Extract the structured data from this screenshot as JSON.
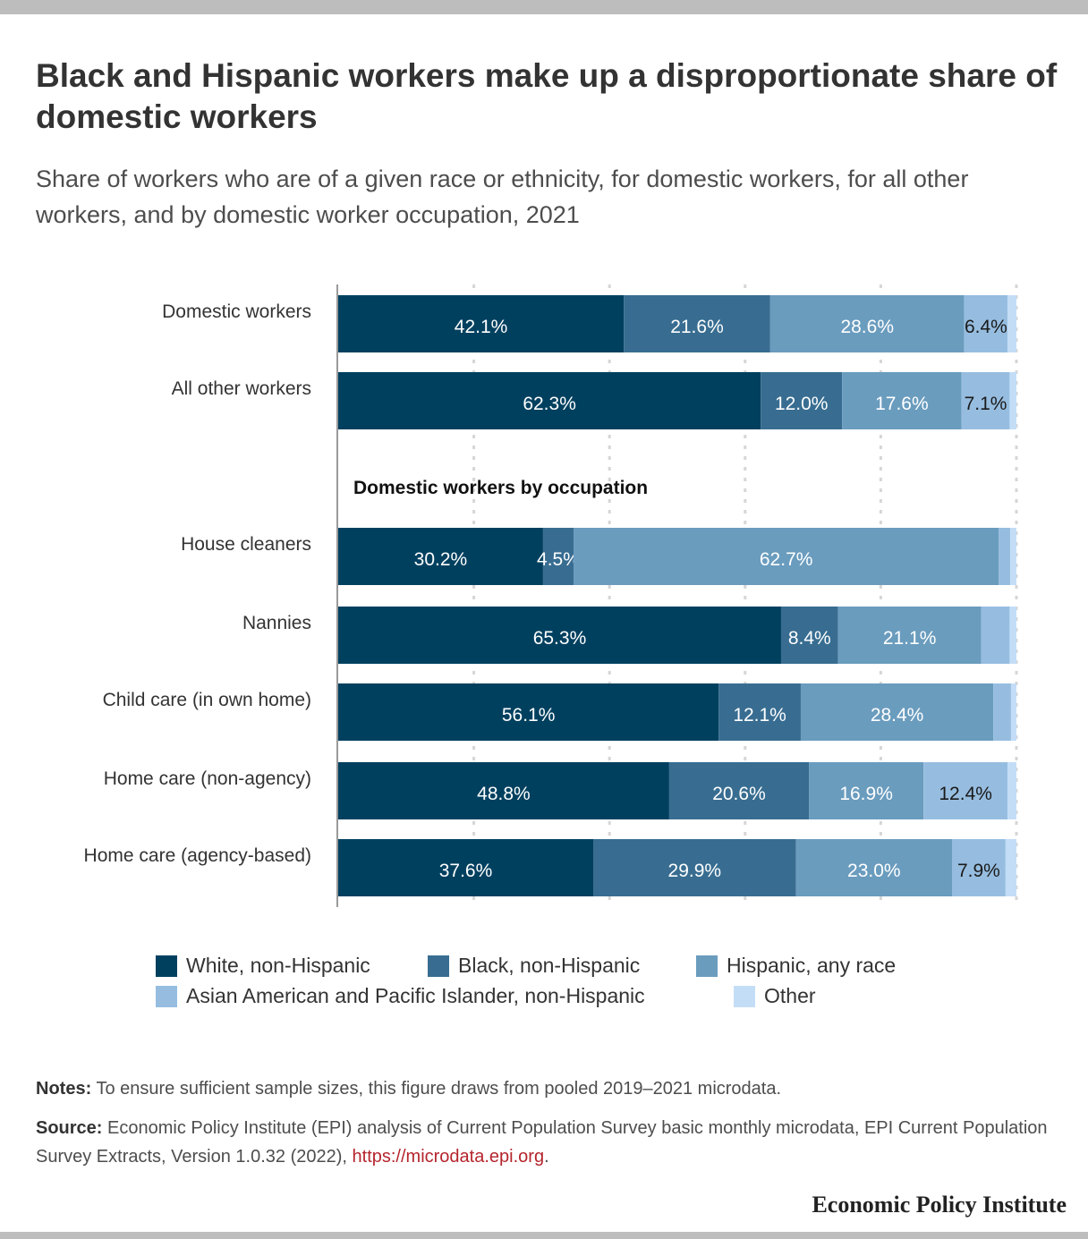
{
  "header": {
    "title": "Black and Hispanic workers make up a disproportionate share of domestic workers",
    "subtitle": "Share of workers who are of a given race or ethnicity, for domestic workers, for all other workers, and by domestic worker occupation, 2021"
  },
  "chart_data": {
    "type": "bar",
    "orientation": "horizontal",
    "stacked": true,
    "xlim": [
      0,
      100
    ],
    "grid": true,
    "legend_position": "bottom",
    "section_label": "Domestic workers by occupation",
    "categories": [
      "Domestic workers",
      "All other workers",
      "House cleaners",
      "Nannies",
      "Child care (in own home)",
      "Home care (non-agency)",
      "Home care (agency-based)"
    ],
    "series": [
      {
        "name": "White, non-Hispanic",
        "color": "#00405f",
        "values": [
          42.1,
          62.3,
          30.2,
          65.3,
          56.1,
          48.8,
          37.6
        ],
        "labels": [
          "42.1%",
          "62.3%",
          "30.2%",
          "65.3%",
          "56.1%",
          "48.8%",
          "37.6%"
        ]
      },
      {
        "name": "Black, non-Hispanic",
        "color": "#386d91",
        "values": [
          21.6,
          12.0,
          4.5,
          8.4,
          12.1,
          20.6,
          29.9
        ],
        "labels": [
          "21.6%",
          "12.0%",
          "4.5%",
          "8.4%",
          "12.1%",
          "20.6%",
          "29.9%"
        ]
      },
      {
        "name": "Hispanic, any race",
        "color": "#6a9cbe",
        "values": [
          28.6,
          17.6,
          62.7,
          21.1,
          28.4,
          16.9,
          23.0
        ],
        "labels": [
          "28.6%",
          "17.6%",
          "62.7%",
          "21.1%",
          "28.4%",
          "16.9%",
          "23.0%"
        ]
      },
      {
        "name": "Asian American and Pacific Islander, non-Hispanic",
        "color": "#96bde0",
        "values": [
          6.4,
          7.1,
          1.7,
          4.2,
          2.6,
          12.4,
          7.9
        ],
        "labels": [
          "6.4%",
          "7.1%",
          "",
          "",
          "",
          "12.4%",
          "7.9%"
        ]
      },
      {
        "name": "Other",
        "color": "#c3ddf7",
        "values": [
          1.3,
          1.0,
          0.9,
          1.0,
          0.8,
          1.3,
          1.6
        ],
        "labels": [
          "",
          "",
          "",
          "",
          "",
          "",
          ""
        ]
      }
    ]
  },
  "footer": {
    "notes_label": "Notes:",
    "notes_text": "To ensure sufficient sample sizes, this figure draws from pooled 2019–2021 microdata.",
    "source_label": "Source:",
    "source_text": "Economic Policy Institute (EPI) analysis of Current Population Survey basic monthly microdata, EPI Current Population Survey Extracts, Version 1.0.32 (2022),",
    "source_link": "https://microdata.epi.org",
    "source_end": ".",
    "brand": "Economic Policy Institute"
  }
}
